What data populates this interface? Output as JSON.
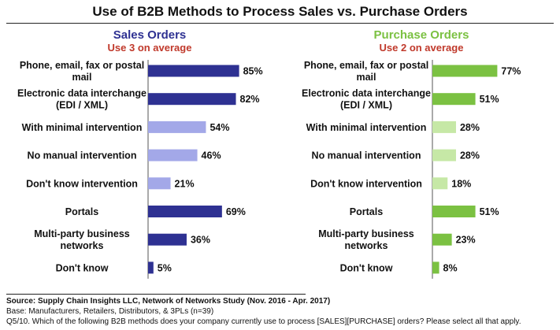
{
  "title": "Use of B2B Methods to Process Sales vs. Purchase Orders",
  "panels": [
    {
      "title": "Sales Orders",
      "subtitle": "Use 3 on average",
      "title_color": "#2e3192"
    },
    {
      "title": "Purchase Orders",
      "subtitle": "Use 2 on average",
      "title_color": "#7bc142"
    }
  ],
  "footer": {
    "source": "Source:  Supply Chain Insights LLC, Network of Networks Study (Nov. 2016 - Apr. 2017)",
    "base": "Base: Manufacturers, Retailers, Distributors, & 3PLs (n=39)",
    "question": "Q5/10. Which of the following B2B methods does your company currently use to process [SALES][PURCHASE] orders? Please select all that apply."
  },
  "chart_data": [
    {
      "type": "bar",
      "orientation": "horizontal",
      "title": "Sales Orders",
      "subtitle": "Use 3 on average",
      "categories": [
        [
          "Phone, email, fax or postal",
          "mail"
        ],
        [
          "Electronic data interchange",
          "(EDI / XML)"
        ],
        [
          "With minimal intervention"
        ],
        [
          "No manual intervention"
        ],
        [
          "Don't know intervention"
        ],
        [
          "Portals"
        ],
        [
          "Multi-party business",
          "networks"
        ],
        [
          "Don't know"
        ]
      ],
      "values": [
        85,
        82,
        54,
        46,
        21,
        69,
        36,
        5
      ],
      "value_labels": [
        "85%",
        "82%",
        "54%",
        "46%",
        "21%",
        "69%",
        "36%",
        "5%"
      ],
      "colors": [
        "#2e3192",
        "#2e3192",
        "#a3a8e8",
        "#a3a8e8",
        "#a3a8e8",
        "#2e3192",
        "#2e3192",
        "#2e3192"
      ],
      "xlim": [
        0,
        100
      ]
    },
    {
      "type": "bar",
      "orientation": "horizontal",
      "title": "Purchase Orders",
      "subtitle": "Use 2 on average",
      "categories": [
        [
          "Phone, email, fax or postal",
          "mail"
        ],
        [
          "Electronic data interchange",
          "(EDI / XML)"
        ],
        [
          "With minimal intervention"
        ],
        [
          "No manual intervention"
        ],
        [
          "Don't know intervention"
        ],
        [
          "Portals"
        ],
        [
          "Multi-party business",
          "networks"
        ],
        [
          "Don't know"
        ]
      ],
      "values": [
        77,
        51,
        28,
        28,
        18,
        51,
        23,
        8
      ],
      "value_labels": [
        "77%",
        "51%",
        "28%",
        "28%",
        "18%",
        "51%",
        "23%",
        "8%"
      ],
      "colors": [
        "#7bc142",
        "#7bc142",
        "#c6e8a6",
        "#c6e8a6",
        "#c6e8a6",
        "#7bc142",
        "#7bc142",
        "#7bc142"
      ],
      "xlim": [
        0,
        100
      ]
    }
  ]
}
